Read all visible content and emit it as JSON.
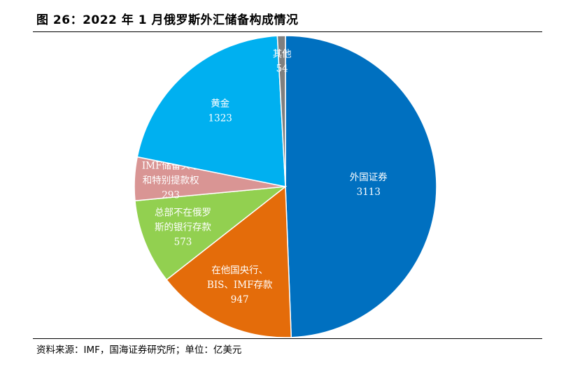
{
  "title": "图 26：2022 年 1 月俄罗斯外汇储备构成情况",
  "source": "资料来源：IMF，国海证券研究所；单位：亿美元",
  "chart_data": {
    "type": "pie",
    "title": "图 26：2022 年 1 月俄罗斯外汇储备构成情况",
    "unit": "亿美元",
    "legend": "none",
    "slices": [
      {
        "lines": [
          "外国证券"
        ],
        "value": 3113,
        "color": "#0070C0"
      },
      {
        "lines": [
          "在他国央行、",
          "BIS、IMF存款"
        ],
        "value": 947,
        "color": "#E46C0A"
      },
      {
        "lines": [
          "总部不在俄罗",
          "斯的银行存款"
        ],
        "value": 573,
        "color": "#92D050"
      },
      {
        "lines": [
          "IMF储备头寸",
          "和特别提款权"
        ],
        "value": 293,
        "color": "#D99594"
      },
      {
        "lines": [
          "黄金"
        ],
        "value": 1323,
        "color": "#00B0F0"
      },
      {
        "lines": [
          "其他"
        ],
        "value": 54,
        "color": "#7F7F7F"
      }
    ]
  }
}
